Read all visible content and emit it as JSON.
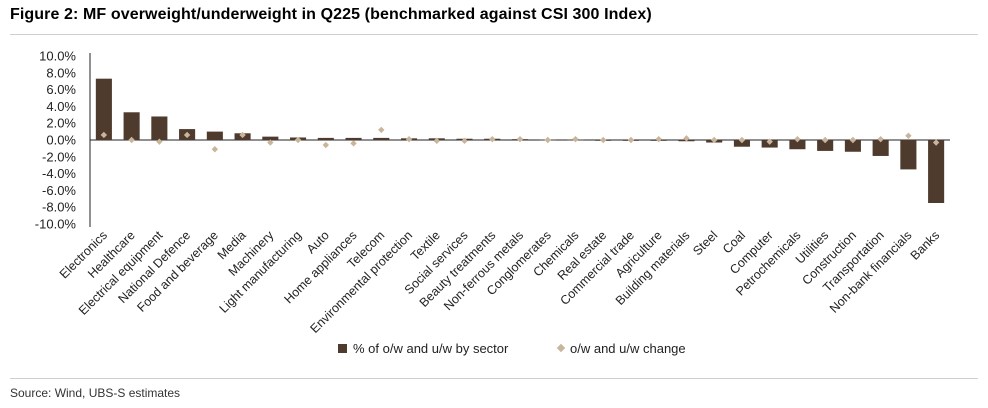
{
  "figure_title": "Figure 2: MF overweight/underweight in Q225 (benchmarked against CSI 300 Index)",
  "source": "Source: Wind, UBS-S estimates",
  "colors": {
    "bar": "#4f3b2e",
    "dot": "#c9b59c",
    "axis": "#222222"
  },
  "chart_data": {
    "type": "bar",
    "title": "MF overweight/underweight in Q225 (benchmarked against CSI 300 Index)",
    "xlabel": "",
    "ylabel": "",
    "ylim": [
      -10,
      10
    ],
    "yticks": [
      "10.0%",
      "8.0%",
      "6.0%",
      "4.0%",
      "2.0%",
      "0.0%",
      "-2.0%",
      "-4.0%",
      "-6.0%",
      "-8.0%",
      "-10.0%"
    ],
    "categories": [
      "Electronics",
      "Healthcare",
      "Electrical equipment",
      "National Defence",
      "Food and beverage",
      "Media",
      "Machinery",
      "Light manufacturing",
      "Auto",
      "Home appliances",
      "Telecom",
      "Environmental protection",
      "Textile",
      "Social services",
      "Beauty treatments",
      "Non-ferrous metals",
      "Conglomerates",
      "Chemicals",
      "Real estate",
      "Commercial trade",
      "Agriculture",
      "Building materials",
      "Steel",
      "Coal",
      "Computer",
      "Petrochemicals",
      "Utilities",
      "Construction",
      "Transportation",
      "Non-bank financials",
      "Banks"
    ],
    "series": [
      {
        "name": "% of o/w and u/w by sector",
        "type": "bar",
        "values": [
          7.3,
          3.3,
          2.8,
          1.3,
          1.0,
          0.8,
          0.4,
          0.3,
          0.25,
          0.25,
          0.25,
          0.2,
          0.2,
          0.15,
          0.15,
          0.1,
          0.05,
          0.05,
          -0.05,
          -0.1,
          -0.1,
          -0.15,
          -0.3,
          -0.8,
          -0.9,
          -1.1,
          -1.3,
          -1.4,
          -1.9,
          -3.5,
          -7.5
        ]
      },
      {
        "name": "o/w and u/w change",
        "type": "marker",
        "values": [
          0.6,
          0.0,
          -0.2,
          0.6,
          -1.1,
          0.6,
          -0.3,
          0.0,
          -0.6,
          -0.4,
          1.2,
          0.1,
          -0.1,
          -0.1,
          0.1,
          0.1,
          0.0,
          0.1,
          0.0,
          0.0,
          0.1,
          0.2,
          0.0,
          0.0,
          -0.2,
          0.1,
          0.0,
          0.0,
          0.1,
          0.5,
          -0.3
        ]
      }
    ],
    "legend": "bottom-center"
  }
}
